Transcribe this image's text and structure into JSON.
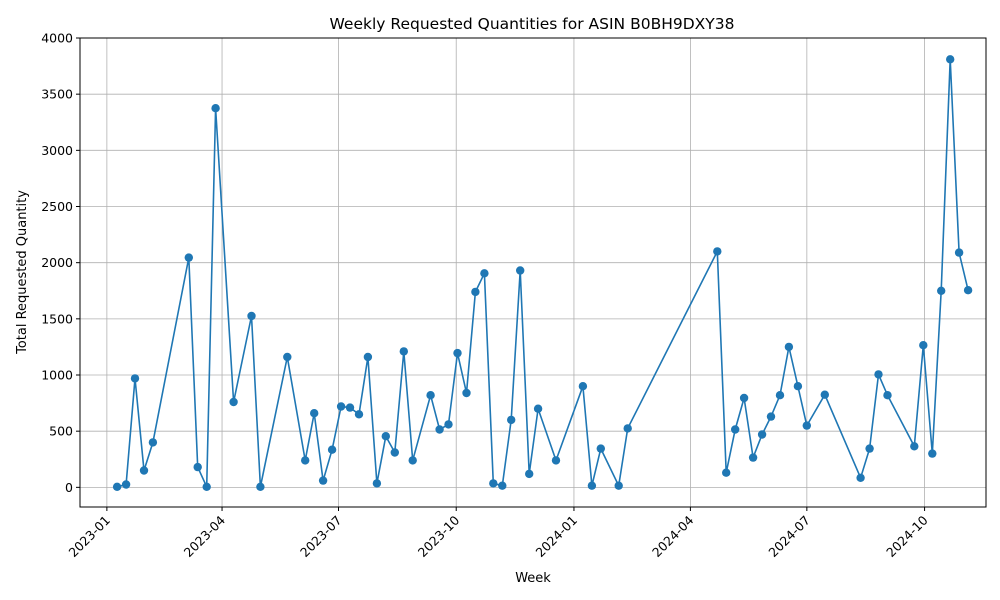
{
  "chart_data": {
    "type": "line",
    "title": "Weekly Requested Quantities for ASIN B0BH9DXY38",
    "xlabel": "Week",
    "ylabel": "Total Requested Quantity",
    "grid": true,
    "legend": "none",
    "xlim": [
      "2022-12-11",
      "2024-11-18"
    ],
    "ylim": [
      -175,
      4000
    ],
    "x_ticks": [
      "2023-01",
      "2023-04",
      "2023-07",
      "2023-10",
      "2024-01",
      "2024-04",
      "2024-07",
      "2024-10"
    ],
    "x_tick_dates": [
      "2023-01-01",
      "2023-04-01",
      "2023-07-01",
      "2023-10-01",
      "2024-01-01",
      "2024-04-01",
      "2024-07-01",
      "2024-10-01"
    ],
    "y_ticks": [
      0,
      500,
      1000,
      1500,
      2000,
      2500,
      3000,
      3500,
      4000
    ],
    "color": "#1f77b4",
    "series": [
      {
        "x": [
          "2023-01-09",
          "2023-01-16",
          "2023-01-23",
          "2023-01-30",
          "2023-02-06",
          "2023-03-06",
          "2023-03-13",
          "2023-03-20",
          "2023-03-27",
          "2023-04-10",
          "2023-04-24",
          "2023-05-01",
          "2023-05-22",
          "2023-06-05",
          "2023-06-12",
          "2023-06-19",
          "2023-06-26",
          "2023-07-03",
          "2023-07-10",
          "2023-07-17",
          "2023-07-24",
          "2023-07-31",
          "2023-08-07",
          "2023-08-14",
          "2023-08-21",
          "2023-08-28",
          "2023-09-11",
          "2023-09-18",
          "2023-09-25",
          "2023-10-02",
          "2023-10-09",
          "2023-10-16",
          "2023-10-23",
          "2023-10-30",
          "2023-11-06",
          "2023-11-13",
          "2023-11-20",
          "2023-11-27",
          "2023-12-04",
          "2023-12-18",
          "2024-01-08",
          "2024-01-15",
          "2024-01-22",
          "2024-02-05",
          "2024-02-12",
          "2024-04-22",
          "2024-04-29",
          "2024-05-06",
          "2024-05-13",
          "2024-05-20",
          "2024-05-27",
          "2024-06-03",
          "2024-06-10",
          "2024-06-17",
          "2024-06-24",
          "2024-07-01",
          "2024-07-15",
          "2024-08-12",
          "2024-08-19",
          "2024-08-26",
          "2024-09-02",
          "2024-09-23",
          "2024-09-30",
          "2024-10-07",
          "2024-10-14",
          "2024-10-21",
          "2024-10-28",
          "2024-11-04"
        ],
        "values": [
          5,
          25,
          970,
          150,
          400,
          2045,
          180,
          5,
          3375,
          760,
          1525,
          5,
          1160,
          240,
          660,
          60,
          335,
          720,
          710,
          650,
          1160,
          35,
          455,
          310,
          1210,
          240,
          820,
          515,
          560,
          1195,
          840,
          1740,
          1905,
          35,
          15,
          600,
          1930,
          120,
          700,
          240,
          900,
          15,
          345,
          15,
          525,
          2100,
          130,
          515,
          795,
          265,
          470,
          630,
          820,
          1250,
          900,
          550,
          825,
          85,
          345,
          1005,
          820,
          365,
          1265,
          300,
          1750,
          3810,
          2090,
          1755
        ]
      }
    ]
  }
}
